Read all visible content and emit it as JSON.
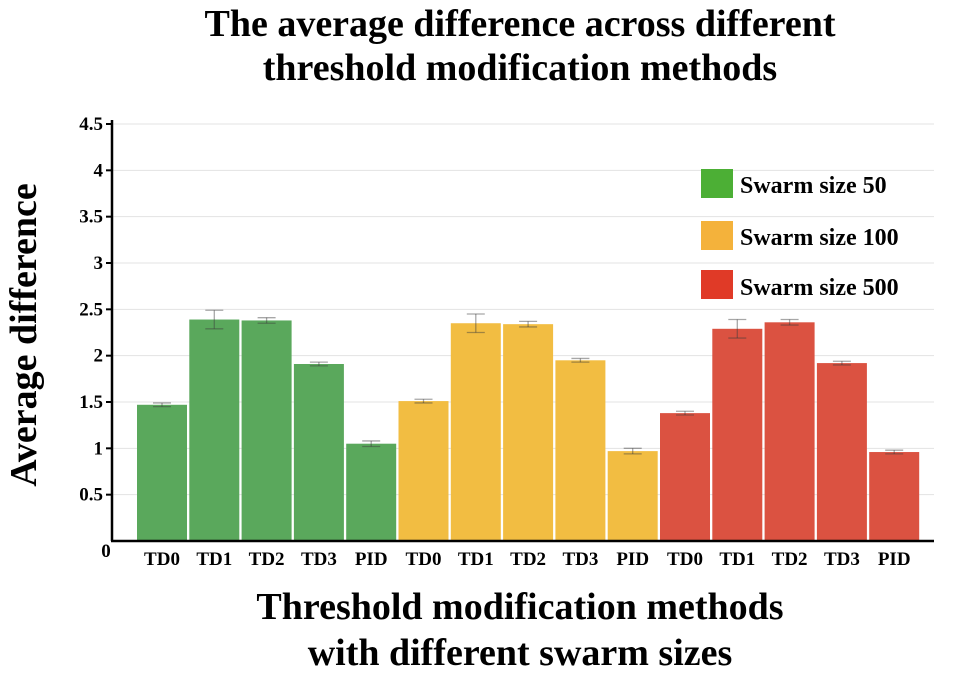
{
  "chart_data": {
    "type": "bar",
    "title_lines": [
      "The average difference across different",
      "threshold modification methods"
    ],
    "xlabel_lines": [
      "Threshold modification methods",
      "with different swarm sizes"
    ],
    "ylabel": "Average difference",
    "ylim": [
      0,
      4.5
    ],
    "yticks": [
      "0.5",
      "1",
      "1.5",
      "2",
      "2.5",
      "3",
      "3.5",
      "4",
      "4.5"
    ],
    "ytick_values": [
      0.5,
      1,
      1.5,
      2,
      2.5,
      3,
      3.5,
      4,
      4.5
    ],
    "zero_label": "0",
    "grid": true,
    "legend_position": "top-right",
    "categories": [
      "TD0",
      "TD1",
      "TD2",
      "TD3",
      "PID"
    ],
    "series": [
      {
        "name": "Swarm size 50",
        "color": "#5aa85c",
        "legend_color": "#4caf35",
        "values": [
          1.47,
          2.39,
          2.38,
          1.91,
          1.05
        ],
        "errors": [
          0.02,
          0.1,
          0.03,
          0.02,
          0.03
        ]
      },
      {
        "name": "Swarm size 100",
        "color": "#f2bd42",
        "legend_color": "#f4b23b",
        "values": [
          1.51,
          2.35,
          2.34,
          1.95,
          0.97
        ],
        "errors": [
          0.02,
          0.1,
          0.03,
          0.02,
          0.03
        ]
      },
      {
        "name": "Swarm size 500",
        "color": "#db5241",
        "legend_color": "#e03a27",
        "values": [
          1.38,
          2.29,
          2.36,
          1.92,
          0.96
        ],
        "errors": [
          0.02,
          0.1,
          0.03,
          0.02,
          0.02
        ]
      }
    ]
  }
}
